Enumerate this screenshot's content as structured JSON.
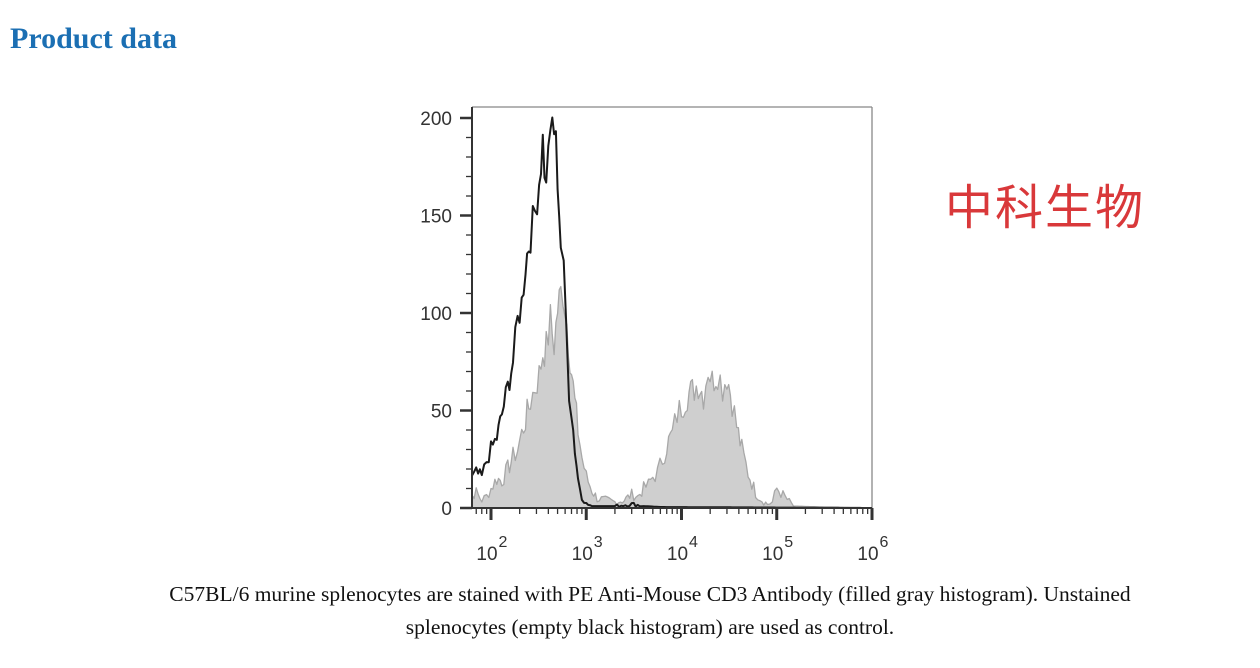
{
  "page": {
    "section_title": "Product data",
    "watermark_text": "中科生物",
    "caption_line1": "C57BL/6 murine splenocytes are stained with PE Anti-Mouse CD3 Antibody (filled gray histogram). Unstained",
    "caption_line2": "splenocytes (empty black histogram) are used as control.",
    "colors": {
      "title": "#1b6fb3",
      "watermark": "#d9383a",
      "stained_fill": "#cfcfcf",
      "stained_line": "#a8a8a8",
      "control_line": "#1a1a1a"
    }
  },
  "chart_data": {
    "type": "area",
    "title": "",
    "xlabel": "",
    "ylabel": "",
    "xscale": "log",
    "xlim": [
      50,
      1000000
    ],
    "ylim": [
      0,
      205
    ],
    "x_ticks": [
      100,
      1000,
      10000,
      100000,
      1000000
    ],
    "x_tick_labels": [
      {
        "base": "10",
        "exp": "2"
      },
      {
        "base": "10",
        "exp": "3"
      },
      {
        "base": "10",
        "exp": "4"
      },
      {
        "base": "10",
        "exp": "5"
      },
      {
        "base": "10",
        "exp": "6"
      }
    ],
    "y_ticks": [
      0,
      50,
      100,
      150,
      200
    ],
    "y_tick_labels": [
      "0",
      "50",
      "100",
      "150",
      "200"
    ],
    "grid": false,
    "legend": null,
    "series": [
      {
        "name": "PE Anti-Mouse CD3 Antibody (stained)",
        "style": "filled gray",
        "x": [
          50,
          60,
          70,
          80,
          90,
          100,
          115,
          130,
          150,
          170,
          190,
          210,
          230,
          260,
          290,
          320,
          350,
          380,
          420,
          460,
          500,
          540,
          570,
          600,
          650,
          700,
          760,
          820,
          900,
          1000,
          1150,
          1300,
          1600,
          2000,
          2500,
          3000,
          3500,
          4000,
          4500,
          5000,
          5600,
          6300,
          7000,
          8000,
          9000,
          10000,
          11500,
          13000,
          15000,
          17000,
          19000,
          21000,
          24000,
          27000,
          30000,
          34000,
          38000,
          43000,
          50000,
          60000,
          70000,
          80000,
          90000,
          100000,
          150000,
          300000,
          1000000
        ],
        "y": [
          10,
          6,
          8,
          4,
          6,
          10,
          15,
          14,
          20,
          26,
          30,
          38,
          45,
          55,
          62,
          68,
          80,
          82,
          96,
          84,
          102,
          110,
          112,
          104,
          86,
          70,
          54,
          40,
          26,
          16,
          9,
          5,
          4,
          3,
          4,
          7,
          6,
          10,
          12,
          16,
          18,
          25,
          32,
          38,
          48,
          52,
          58,
          60,
          64,
          58,
          72,
          65,
          70,
          62,
          68,
          55,
          42,
          30,
          18,
          8,
          4,
          2,
          3,
          10,
          1,
          0.5,
          0
        ]
      },
      {
        "name": "Unstained control",
        "style": "black outline",
        "x": [
          50,
          60,
          70,
          80,
          90,
          100,
          115,
          130,
          150,
          170,
          190,
          210,
          230,
          260,
          290,
          320,
          350,
          380,
          400,
          420,
          440,
          460,
          480,
          500,
          540,
          580,
          620,
          660,
          700,
          760,
          820,
          900,
          1000,
          1150,
          1300,
          1600,
          2000,
          3000,
          4000,
          6000,
          1000000
        ],
        "y": [
          5,
          14,
          18,
          16,
          24,
          30,
          36,
          48,
          62,
          75,
          96,
          105,
          125,
          140,
          152,
          168,
          188,
          162,
          190,
          185,
          198,
          194,
          186,
          170,
          135,
          120,
          90,
          60,
          50,
          30,
          15,
          6,
          2,
          1,
          1,
          1,
          1,
          2,
          1,
          0.5,
          0
        ]
      }
    ]
  }
}
